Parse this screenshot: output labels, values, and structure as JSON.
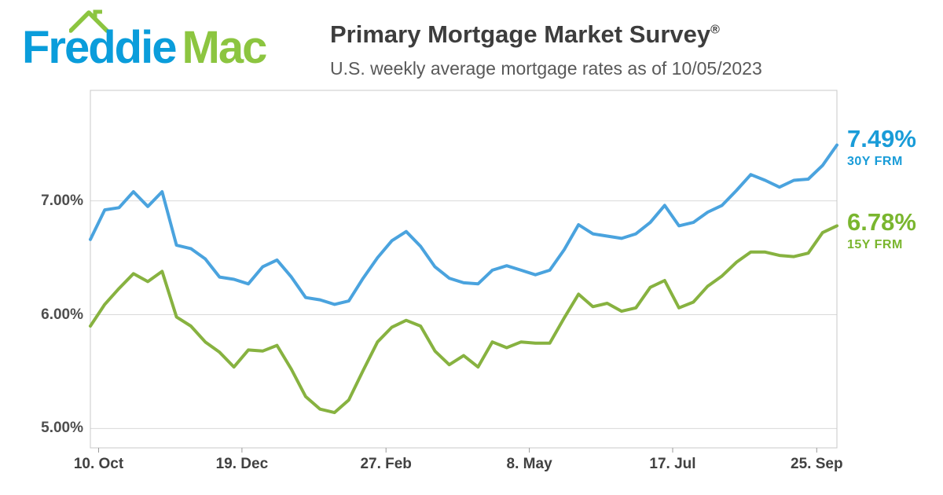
{
  "logo": {
    "word1": "Freddie",
    "word2": "Mac"
  },
  "header": {
    "title": "Primary Mortgage Market Survey",
    "registered_mark": "®",
    "subtitle": "U.S. weekly average mortgage rates as of 10/05/2023"
  },
  "colors": {
    "logo_blue": "#0a9ddb",
    "logo_green": "#8cc540",
    "grid_line": "#d9d9d9",
    "plot_border": "#c9c9c9",
    "tick_mark": "#999999",
    "axis_text": "#4e4e4e",
    "title_text": "#3d3d3d",
    "subtitle_text": "#595959"
  },
  "chart_data": {
    "type": "line",
    "title": "Primary Mortgage Market Survey",
    "subtitle": "U.S. weekly average mortgage rates as of 10/05/2023",
    "grid": true,
    "legend_position": "right-annotations",
    "x_axis": {
      "frequency": "weekly",
      "as_of": "10/05/2023",
      "ticks": [
        {
          "label": "10. Oct",
          "pos": 0.011
        },
        {
          "label": "19. Dec",
          "pos": 0.203
        },
        {
          "label": "27. Feb",
          "pos": 0.396
        },
        {
          "label": "8. May",
          "pos": 0.588
        },
        {
          "label": "17. Jul",
          "pos": 0.78
        },
        {
          "label": "25. Sep",
          "pos": 0.973
        }
      ]
    },
    "y_axis": {
      "range": [
        4.83,
        7.97
      ],
      "ticks": [
        {
          "label": "5.00%",
          "value": 5.0
        },
        {
          "label": "6.00%",
          "value": 6.0
        },
        {
          "label": "7.00%",
          "value": 7.0
        }
      ]
    },
    "series": [
      {
        "name": "30Y FRM",
        "latest_label": "7.49%",
        "line_color": "#4aa3de",
        "text_color": "#199cd8",
        "values": [
          6.66,
          6.92,
          6.94,
          7.08,
          6.95,
          7.08,
          6.61,
          6.58,
          6.49,
          6.33,
          6.31,
          6.27,
          6.42,
          6.48,
          6.33,
          6.15,
          6.13,
          6.09,
          6.12,
          6.32,
          6.5,
          6.65,
          6.73,
          6.6,
          6.42,
          6.32,
          6.28,
          6.27,
          6.39,
          6.43,
          6.39,
          6.35,
          6.39,
          6.57,
          6.79,
          6.71,
          6.69,
          6.67,
          6.71,
          6.81,
          6.96,
          6.78,
          6.81,
          6.9,
          6.96,
          7.09,
          7.23,
          7.18,
          7.12,
          7.18,
          7.19,
          7.31,
          7.49
        ]
      },
      {
        "name": "15Y FRM",
        "latest_label": "6.78%",
        "line_color": "#87b240",
        "text_color": "#7ab62f",
        "values": [
          5.9,
          6.09,
          6.23,
          6.36,
          6.29,
          6.38,
          5.98,
          5.9,
          5.76,
          5.67,
          5.54,
          5.69,
          5.68,
          5.73,
          5.52,
          5.28,
          5.17,
          5.14,
          5.25,
          5.51,
          5.76,
          5.89,
          5.95,
          5.9,
          5.68,
          5.56,
          5.64,
          5.54,
          5.76,
          5.71,
          5.76,
          5.75,
          5.75,
          5.97,
          6.18,
          6.07,
          6.1,
          6.03,
          6.06,
          6.24,
          6.3,
          6.06,
          6.11,
          6.25,
          6.34,
          6.46,
          6.55,
          6.55,
          6.52,
          6.51,
          6.54,
          6.72,
          6.78
        ]
      }
    ]
  }
}
